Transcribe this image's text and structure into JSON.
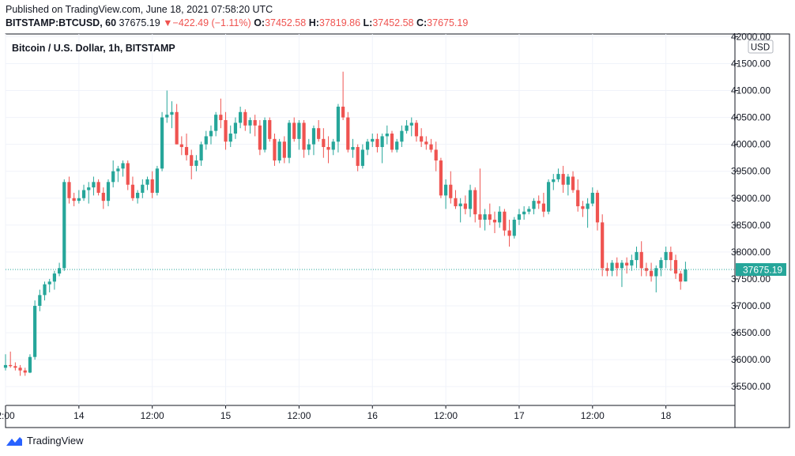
{
  "header": {
    "published": "Published on TradingView.com, June 18, 2021 07:58:20 UTC",
    "symbol": "BITSTAMP:BTCUSD, 60",
    "last": "37675.19",
    "change": "−422.49 (−1.11%)",
    "o_label": "O:",
    "o_value": "37452.58",
    "h_label": "H:",
    "h_value": "37819.86",
    "l_label": "L:",
    "l_value": "37452.58",
    "c_label": "C:",
    "c_value": "37675.19"
  },
  "colors": {
    "up": "#26a69a",
    "down": "#ef5350",
    "grid": "#f0f3fa",
    "text": "#131722"
  },
  "chart_data": {
    "type": "candlestick",
    "title": "Bitcoin / U.S. Dollar, 1h, BITSTAMP",
    "currency": "USD",
    "last_price_label": "37675.19",
    "last_price": 37675.19,
    "ylim": [
      35150,
      42050
    ],
    "y_ticks": [
      35500,
      36000,
      36500,
      37000,
      37500,
      38000,
      38500,
      39000,
      39500,
      40000,
      40500,
      41000,
      41500,
      42000
    ],
    "y_tick_labels": [
      "35500.00",
      "36000.00",
      "36500.00",
      "37000.00",
      "37500.00",
      "38000.00",
      "38500.00",
      "39000.00",
      "39500.00",
      "40000.00",
      "40500.00",
      "41000.00",
      "41500.00",
      "42000.00"
    ],
    "x_ticks": [
      {
        "label": "2:00",
        "i": 0
      },
      {
        "label": "14",
        "i": 15
      },
      {
        "label": "12:00",
        "i": 30
      },
      {
        "label": "15",
        "i": 45
      },
      {
        "label": "12:00",
        "i": 60
      },
      {
        "label": "16",
        "i": 75
      },
      {
        "label": "12:00",
        "i": 90
      },
      {
        "label": "17",
        "i": 105
      },
      {
        "label": "12:00",
        "i": 120
      },
      {
        "label": "18",
        "i": 135
      }
    ],
    "candles": [
      [
        35850,
        36100,
        35800,
        35900
      ],
      [
        35900,
        36150,
        35850,
        35880
      ],
      [
        35880,
        35950,
        35800,
        35850
      ],
      [
        35850,
        35900,
        35700,
        35800
      ],
      [
        35800,
        35850,
        35700,
        35760
      ],
      [
        35760,
        36100,
        35750,
        36050
      ],
      [
        36050,
        37100,
        36000,
        37000
      ],
      [
        37000,
        37300,
        36900,
        37200
      ],
      [
        37200,
        37450,
        37100,
        37400
      ],
      [
        37400,
        37500,
        37250,
        37450
      ],
      [
        37450,
        37650,
        37300,
        37600
      ],
      [
        37600,
        37800,
        37550,
        37700
      ],
      [
        37700,
        39350,
        37650,
        39300
      ],
      [
        39300,
        39400,
        38900,
        39000
      ],
      [
        39000,
        39100,
        38850,
        38950
      ],
      [
        38950,
        39150,
        38900,
        39000
      ],
      [
        39000,
        39250,
        38950,
        39150
      ],
      [
        39150,
        39300,
        38900,
        39200
      ],
      [
        39200,
        39400,
        39050,
        39300
      ],
      [
        39300,
        39350,
        39050,
        39100
      ],
      [
        39100,
        39200,
        38800,
        38950
      ],
      [
        38950,
        39350,
        38850,
        39300
      ],
      [
        39300,
        39700,
        39200,
        39500
      ],
      [
        39500,
        39600,
        39300,
        39550
      ],
      [
        39550,
        39700,
        39400,
        39650
      ],
      [
        39650,
        39700,
        39150,
        39250
      ],
      [
        39250,
        39400,
        38950,
        39000
      ],
      [
        39000,
        39150,
        38900,
        39100
      ],
      [
        39100,
        39350,
        39000,
        39250
      ],
      [
        39250,
        39400,
        39150,
        39350
      ],
      [
        39350,
        39500,
        39000,
        39100
      ],
      [
        39100,
        39600,
        39050,
        39550
      ],
      [
        39550,
        40600,
        39500,
        40500
      ],
      [
        40500,
        41000,
        40400,
        40550
      ],
      [
        40550,
        40800,
        40300,
        40600
      ],
      [
        40600,
        40750,
        40000,
        40000
      ],
      [
        40000,
        40150,
        39800,
        39950
      ],
      [
        39950,
        40200,
        39700,
        39800
      ],
      [
        39800,
        39900,
        39350,
        39600
      ],
      [
        39600,
        39800,
        39500,
        39700
      ],
      [
        39700,
        40050,
        39600,
        40000
      ],
      [
        40000,
        40250,
        39900,
        40150
      ],
      [
        40150,
        40350,
        40000,
        40250
      ],
      [
        40250,
        40600,
        40150,
        40550
      ],
      [
        40550,
        40850,
        40300,
        40450
      ],
      [
        40450,
        40600,
        39900,
        40050
      ],
      [
        40050,
        40350,
        39950,
        40200
      ],
      [
        40200,
        40500,
        40100,
        40400
      ],
      [
        40400,
        40700,
        40300,
        40600
      ],
      [
        40600,
        40650,
        40250,
        40350
      ],
      [
        40350,
        40500,
        40200,
        40450
      ],
      [
        40450,
        40550,
        40150,
        40350
      ],
      [
        40350,
        40450,
        39800,
        39900
      ],
      [
        39900,
        40500,
        39850,
        40450
      ],
      [
        40450,
        40500,
        40050,
        40100
      ],
      [
        40100,
        40200,
        39600,
        39700
      ],
      [
        39700,
        40100,
        39650,
        40050
      ],
      [
        40050,
        40150,
        39650,
        39750
      ],
      [
        39750,
        40450,
        39650,
        40400
      ],
      [
        40400,
        40500,
        40050,
        40100
      ],
      [
        40100,
        40450,
        39900,
        40400
      ],
      [
        40400,
        40450,
        39750,
        39900
      ],
      [
        39900,
        40100,
        39800,
        40000
      ],
      [
        40000,
        40350,
        39800,
        40300
      ],
      [
        40300,
        40450,
        40050,
        40100
      ],
      [
        40100,
        40300,
        39750,
        39950
      ],
      [
        39950,
        40150,
        39650,
        39900
      ],
      [
        39900,
        40100,
        39800,
        40050
      ],
      [
        40050,
        40750,
        39850,
        40700
      ],
      [
        40700,
        41350,
        40450,
        40500
      ],
      [
        40500,
        40600,
        39850,
        39900
      ],
      [
        39900,
        40100,
        39750,
        39950
      ],
      [
        39950,
        40000,
        39500,
        39600
      ],
      [
        39600,
        40000,
        39550,
        39900
      ],
      [
        39900,
        40100,
        39800,
        40050
      ],
      [
        40050,
        40200,
        39950,
        40100
      ],
      [
        40100,
        40200,
        39850,
        39950
      ],
      [
        39950,
        40200,
        39650,
        40150
      ],
      [
        40150,
        40350,
        40000,
        40200
      ],
      [
        40200,
        40250,
        39850,
        39900
      ],
      [
        39900,
        40100,
        39850,
        40050
      ],
      [
        40050,
        40350,
        39950,
        40250
      ],
      [
        40250,
        40450,
        40200,
        40350
      ],
      [
        40350,
        40500,
        40150,
        40400
      ],
      [
        40400,
        40450,
        40050,
        40150
      ],
      [
        40150,
        40300,
        39950,
        40050
      ],
      [
        40050,
        40150,
        39900,
        40000
      ],
      [
        40000,
        40100,
        39850,
        39900
      ],
      [
        39900,
        40050,
        39500,
        39700
      ],
      [
        39700,
        39750,
        39000,
        39050
      ],
      [
        39050,
        39350,
        38800,
        39250
      ],
      [
        39250,
        39500,
        38900,
        39000
      ],
      [
        39000,
        39150,
        38800,
        38850
      ],
      [
        38850,
        39000,
        38550,
        38900
      ],
      [
        38900,
        39050,
        38700,
        38800
      ],
      [
        38800,
        39250,
        38650,
        39150
      ],
      [
        39150,
        39200,
        38550,
        38700
      ],
      [
        38700,
        39550,
        38450,
        38600
      ],
      [
        38600,
        38800,
        38400,
        38700
      ],
      [
        38700,
        38900,
        38500,
        38600
      ],
      [
        38600,
        38750,
        38350,
        38550
      ],
      [
        38550,
        38850,
        38450,
        38750
      ],
      [
        38750,
        38800,
        38300,
        38400
      ],
      [
        38400,
        38600,
        38100,
        38300
      ],
      [
        38300,
        38650,
        38250,
        38600
      ],
      [
        38600,
        38800,
        38500,
        38700
      ],
      [
        38700,
        38850,
        38600,
        38750
      ],
      [
        38750,
        38850,
        38700,
        38800
      ],
      [
        38800,
        39000,
        38700,
        38950
      ],
      [
        38950,
        39050,
        38800,
        38900
      ],
      [
        38900,
        39100,
        38650,
        38750
      ],
      [
        38750,
        39350,
        38700,
        39300
      ],
      [
        39300,
        39450,
        39150,
        39350
      ],
      [
        39350,
        39550,
        39300,
        39450
      ],
      [
        39450,
        39600,
        39100,
        39250
      ],
      [
        39250,
        39450,
        39050,
        39400
      ],
      [
        39400,
        39500,
        39100,
        39150
      ],
      [
        39150,
        39350,
        38750,
        38850
      ],
      [
        38850,
        38950,
        38650,
        38800
      ],
      [
        38800,
        39000,
        38450,
        38900
      ],
      [
        38900,
        39200,
        38850,
        39100
      ],
      [
        39100,
        39150,
        38400,
        38550
      ],
      [
        38550,
        38700,
        37550,
        37700
      ],
      [
        37700,
        37800,
        37550,
        37650
      ],
      [
        37650,
        37850,
        37550,
        37800
      ],
      [
        37800,
        37900,
        37550,
        37700
      ],
      [
        37700,
        37850,
        37350,
        37800
      ],
      [
        37800,
        37900,
        37600,
        37750
      ],
      [
        37750,
        37950,
        37650,
        37850
      ],
      [
        37850,
        38100,
        37700,
        38000
      ],
      [
        38000,
        38200,
        37550,
        37700
      ],
      [
        37700,
        37800,
        37550,
        37650
      ],
      [
        37650,
        37800,
        37450,
        37550
      ],
      [
        37550,
        37750,
        37250,
        37700
      ],
      [
        37700,
        37900,
        37550,
        37850
      ],
      [
        37850,
        38100,
        37700,
        38000
      ],
      [
        38000,
        38100,
        37650,
        37850
      ],
      [
        37850,
        37950,
        37500,
        37600
      ],
      [
        37600,
        37650,
        37300,
        37450
      ],
      [
        37452.58,
        37819.86,
        37452.58,
        37675.19
      ]
    ]
  },
  "footer": {
    "brand": "TradingView"
  }
}
